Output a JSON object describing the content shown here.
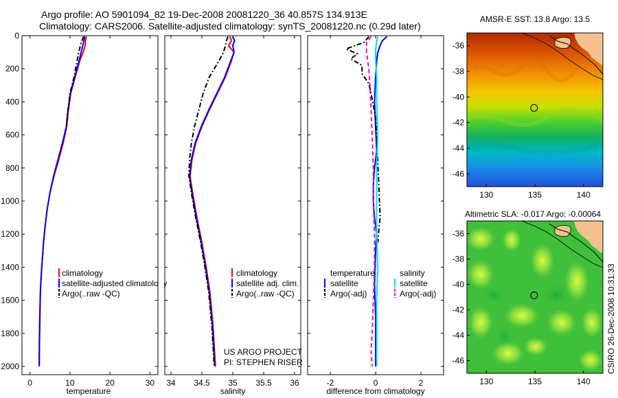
{
  "header": {
    "line1": "Argo profile: AO 5901094_82 19-Dec-2008 20081220_36 40.857S 134.913E",
    "line2": "Climatology: CARS2006. Satellite-adjusted climatology: synTS_20081220.nc (0.29d later)"
  },
  "credit": {
    "line1": "US ARGO PROJECT",
    "line2": "PI: STEPHEN RISER"
  },
  "timestamp": "CSIRO 26-Dec-2008 10:31:33",
  "colors": {
    "climatology": "#ff0000",
    "satellite": "#0000ff",
    "argo": "#000000",
    "sal_satellite": "#00e5ee",
    "sal_argo": "#ee00cc",
    "land": "#f5c28f",
    "coast": "#000000"
  },
  "chart_data": [
    {
      "type": "line",
      "name": "temperature-panel",
      "xlabel": "temperature",
      "ylabel": "",
      "xlim": [
        -2,
        32
      ],
      "ylim": [
        2050,
        0
      ],
      "xticks": [
        "0",
        "10",
        "20",
        "30"
      ],
      "xtick_values": [
        0,
        10,
        20,
        30
      ],
      "yticks": [
        "0",
        "200",
        "400",
        "600",
        "800",
        "1000",
        "1200",
        "1400",
        "1600",
        "1800",
        "2000"
      ],
      "ytick_values": [
        0,
        200,
        400,
        600,
        800,
        1000,
        1200,
        1400,
        1600,
        1800,
        2000
      ],
      "legend": [
        "climatology",
        "satellite-adjusted climatology",
        "Argo(..raw -QC)"
      ],
      "series": [
        {
          "name": "climatology",
          "style": "solid",
          "color": "#ff0000",
          "x": [
            14.1,
            13.9,
            13.8,
            13.3,
            12.5,
            11.3,
            10.2,
            9.6,
            9.2,
            8.3,
            7.2,
            6.0,
            5.0,
            4.3,
            3.8,
            3.4,
            3.1,
            2.8,
            2.6,
            2.5,
            2.4,
            2.35
          ],
          "y": [
            5,
            30,
            60,
            100,
            150,
            250,
            350,
            450,
            550,
            650,
            750,
            850,
            950,
            1050,
            1150,
            1250,
            1350,
            1450,
            1550,
            1700,
            1850,
            2000
          ]
        },
        {
          "name": "satellite",
          "style": "solid",
          "color": "#0000ff",
          "x": [
            13.7,
            13.5,
            13.2,
            12.8,
            12.3,
            11.2,
            10.1,
            9.5,
            9.1,
            8.1,
            7.0,
            5.9,
            5.0,
            4.3,
            3.8,
            3.4,
            3.1,
            2.8,
            2.6,
            2.45,
            2.35,
            2.3
          ],
          "y": [
            5,
            30,
            60,
            100,
            150,
            250,
            350,
            450,
            550,
            650,
            750,
            850,
            950,
            1050,
            1150,
            1250,
            1350,
            1450,
            1550,
            1700,
            1850,
            2000
          ]
        },
        {
          "name": "argo",
          "style": "dashdot",
          "color": "#000000",
          "x": [
            13.4,
            13.0,
            12.6,
            12.2,
            11.8,
            11.0,
            10.0,
            9.5,
            9.1
          ],
          "y": [
            5,
            30,
            60,
            100,
            150,
            250,
            350,
            450,
            550
          ]
        }
      ]
    },
    {
      "type": "line",
      "name": "salinity-panel",
      "xlabel": "salinity",
      "xlim": [
        33.9,
        36.1
      ],
      "ylim": [
        2050,
        0
      ],
      "xticks": [
        "34",
        "34.5",
        "35",
        "35.5",
        "36"
      ],
      "xtick_values": [
        34,
        34.5,
        35,
        35.5,
        36
      ],
      "legend": [
        "climatology",
        "satellite adj. clim.",
        "Argo(..raw -QC)"
      ],
      "series": [
        {
          "name": "climatology",
          "style": "solid",
          "color": "#ff0000",
          "x": [
            34.95,
            34.98,
            34.93,
            35.02,
            34.98,
            34.88,
            34.75,
            34.62,
            34.5,
            34.4,
            34.34,
            34.31,
            34.35,
            34.42,
            34.5,
            34.57,
            34.63,
            34.68,
            34.72
          ],
          "y": [
            5,
            30,
            60,
            100,
            150,
            250,
            350,
            450,
            550,
            650,
            750,
            850,
            950,
            1100,
            1250,
            1400,
            1550,
            1750,
            2000
          ]
        },
        {
          "name": "satellite",
          "style": "solid",
          "color": "#0000ff",
          "x": [
            35.0,
            35.03,
            35.0,
            35.02,
            34.97,
            34.87,
            34.74,
            34.61,
            34.49,
            34.39,
            34.33,
            34.3,
            34.34,
            34.41,
            34.49,
            34.56,
            34.62,
            34.67,
            34.71
          ],
          "y": [
            5,
            30,
            60,
            100,
            150,
            250,
            350,
            450,
            550,
            650,
            750,
            850,
            950,
            1100,
            1250,
            1400,
            1550,
            1750,
            2000
          ]
        },
        {
          "name": "argo",
          "style": "dashdot",
          "color": "#000000",
          "x": [
            34.92,
            34.9,
            34.88,
            34.85,
            34.78,
            34.62,
            34.52,
            34.45,
            34.38,
            34.33,
            34.3,
            34.29,
            34.33,
            34.4,
            34.48,
            34.55,
            34.61,
            34.66,
            34.7
          ],
          "y": [
            5,
            30,
            60,
            100,
            150,
            250,
            350,
            450,
            550,
            650,
            750,
            850,
            950,
            1100,
            1250,
            1400,
            1550,
            1750,
            2000
          ]
        }
      ]
    },
    {
      "type": "line",
      "name": "difference-panel",
      "xlabel": "difference from climatology",
      "xlim": [
        -3,
        3
      ],
      "ylim": [
        2050,
        0
      ],
      "xticks": [
        "-2",
        "0",
        "2"
      ],
      "xtick_values": [
        -2,
        0,
        2
      ],
      "legend": [
        "temperature",
        "satellite",
        "Argo(-adj)",
        "salinity",
        "satellite",
        "Argo(-adj)"
      ],
      "series": [
        {
          "name": "temperature satellite",
          "style": "solid",
          "color": "#0000ff",
          "x": [
            0.5,
            0.3,
            0.2,
            0.1,
            0.05,
            0.0,
            -0.05,
            0.0,
            0.05,
            -0.05,
            -0.1,
            -0.1,
            -0.05,
            0.05,
            0.0,
            -0.05,
            0.0,
            0.0
          ],
          "y": [
            5,
            30,
            60,
            100,
            150,
            250,
            400,
            550,
            700,
            800,
            900,
            1000,
            1100,
            1200,
            1300,
            1500,
            1700,
            2000
          ]
        },
        {
          "name": "temperature argo",
          "style": "dashdot",
          "color": "#000000",
          "x": [
            -0.3,
            -0.5,
            -1.3,
            -0.8,
            -1.1,
            -0.6,
            -0.6,
            -0.3,
            -0.2,
            -0.1,
            0.0,
            0.05,
            0.2,
            0.15,
            0.1
          ],
          "y": [
            5,
            40,
            80,
            110,
            140,
            180,
            230,
            290,
            350,
            420,
            500,
            600,
            1100,
            1160,
            1250
          ]
        },
        {
          "name": "salinity satellite",
          "style": "solid",
          "color": "#00e5ee",
          "x": [
            0.1,
            0.05,
            0.0,
            0.0,
            0.05,
            0.05,
            0.1,
            0.05,
            0.05,
            0.05,
            0.1,
            0.05,
            0.05,
            0.05,
            0.05
          ],
          "y": [
            5,
            40,
            80,
            150,
            250,
            400,
            600,
            800,
            1000,
            1200,
            1400,
            1600,
            1800,
            1900,
            2000
          ]
        },
        {
          "name": "salinity argo",
          "style": "dashed",
          "color": "#ee00cc",
          "x": [
            -0.2,
            -0.4,
            -0.4,
            -0.3,
            -0.25,
            -0.2,
            -0.15,
            -0.1,
            -0.1,
            -0.05,
            -0.05,
            -0.1,
            -0.15,
            -0.2,
            -0.15
          ],
          "y": [
            5,
            40,
            100,
            200,
            300,
            450,
            600,
            800,
            1000,
            1200,
            1400,
            1600,
            1800,
            1900,
            2000
          ]
        }
      ]
    },
    {
      "type": "heatmap",
      "name": "sst-map",
      "title": "AMSR-E SST: 13.8 Argo: 13.5",
      "xlim": [
        128,
        142
      ],
      "ylim": [
        -47,
        -35
      ],
      "xticks": [
        "130",
        "135",
        "140"
      ],
      "xtick_values": [
        130,
        135,
        140
      ],
      "yticks": [
        "-36",
        "-38",
        "-40",
        "-42",
        "-44",
        "-46"
      ],
      "ytick_values": [
        -36,
        -38,
        -40,
        -42,
        -44,
        -46
      ],
      "argo_position": {
        "lon": 134.913,
        "lat": -40.857
      }
    },
    {
      "type": "heatmap",
      "name": "sla-map",
      "title": "Altimetric SLA: -0.017 Argo: -0.00064",
      "xlim": [
        128,
        142
      ],
      "ylim": [
        -47,
        -35
      ],
      "xticks": [
        "130",
        "135",
        "140"
      ],
      "xtick_values": [
        130,
        135,
        140
      ],
      "yticks": [
        "-36",
        "-38",
        "-40",
        "-42",
        "-44",
        "-46"
      ],
      "ytick_values": [
        -36,
        -38,
        -40,
        -42,
        -44,
        -46
      ],
      "argo_position": {
        "lon": 134.913,
        "lat": -40.857
      }
    }
  ]
}
